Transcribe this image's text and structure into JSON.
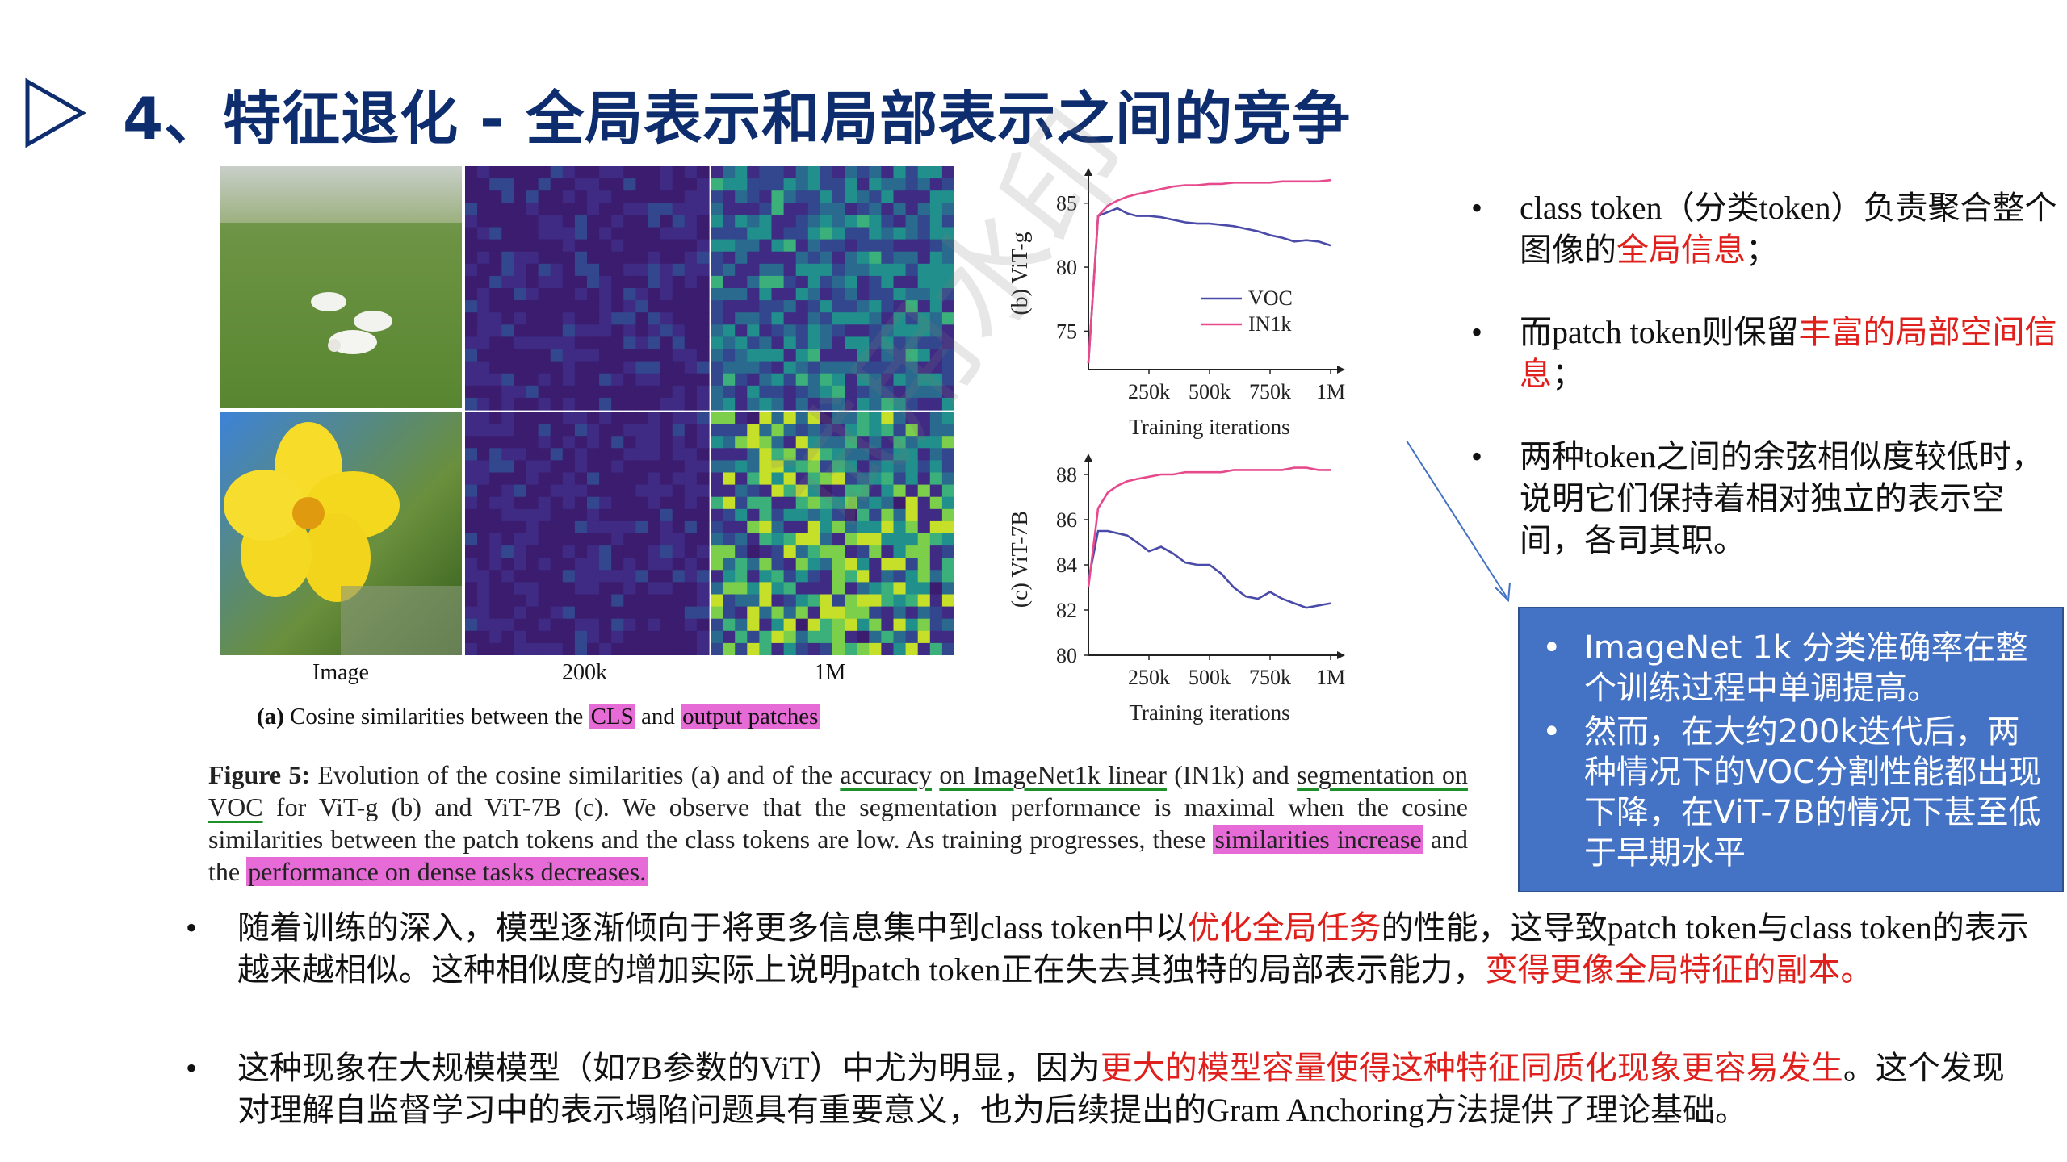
{
  "title": "4、特征退化 - 全局表示和局部表示之间的竞争",
  "figure_a": {
    "column_labels": [
      "Image",
      "200k",
      "1M"
    ],
    "caption_prefix": "(a)",
    "caption_text": "Cosine similarities between the",
    "caption_cls": "CLS",
    "caption_and": "and",
    "caption_output": "output patches"
  },
  "chart_data": [
    {
      "type": "line",
      "ylabel": "(b) ViT-g",
      "xlabel": "Training iterations",
      "x_ticks": [
        "250k",
        "500k",
        "750k",
        "1M"
      ],
      "y_ticks": [
        75,
        80,
        85
      ],
      "ylim": [
        72,
        87
      ],
      "xlim": [
        0,
        1000
      ],
      "legend": "inside-right",
      "x": [
        0,
        40,
        80,
        120,
        160,
        200,
        250,
        300,
        350,
        400,
        450,
        500,
        550,
        600,
        650,
        700,
        750,
        800,
        850,
        900,
        950,
        1000
      ],
      "series": [
        {
          "name": "VOC",
          "color": "#4a4aa8",
          "values": [
            72.5,
            84.0,
            84.3,
            84.6,
            84.2,
            84.0,
            84.0,
            83.9,
            83.7,
            83.5,
            83.4,
            83.4,
            83.3,
            83.2,
            83.0,
            82.8,
            82.5,
            82.3,
            82.0,
            82.1,
            82.0,
            81.7
          ]
        },
        {
          "name": "IN1k",
          "color": "#e64a8c",
          "values": [
            72.5,
            84.0,
            84.8,
            85.2,
            85.5,
            85.7,
            85.9,
            86.1,
            86.3,
            86.4,
            86.4,
            86.5,
            86.5,
            86.6,
            86.6,
            86.6,
            86.6,
            86.7,
            86.7,
            86.7,
            86.7,
            86.8
          ]
        }
      ]
    },
    {
      "type": "line",
      "ylabel": "(c) ViT-7B",
      "xlabel": "Training iterations",
      "x_ticks": [
        "250k",
        "500k",
        "750k",
        "1M"
      ],
      "y_ticks": [
        80,
        82,
        84,
        86,
        88
      ],
      "y_tick_labels": [
        "80",
        "82",
        "84",
        "86",
        "88"
      ],
      "ylim": [
        80,
        88.5
      ],
      "xlim": [
        0,
        1000
      ],
      "x": [
        0,
        40,
        80,
        120,
        160,
        200,
        250,
        300,
        350,
        400,
        450,
        500,
        550,
        600,
        650,
        700,
        750,
        800,
        850,
        900,
        950,
        1000
      ],
      "series": [
        {
          "name": "VOC",
          "color": "#4a4aa8",
          "values": [
            83.3,
            85.5,
            85.5,
            85.4,
            85.3,
            85.0,
            84.6,
            84.8,
            84.5,
            84.1,
            84.0,
            84.0,
            83.6,
            83.0,
            82.6,
            82.5,
            82.8,
            82.5,
            82.3,
            82.1,
            82.2,
            82.3
          ]
        },
        {
          "name": "IN1k",
          "color": "#e64a8c",
          "values": [
            83.0,
            86.5,
            87.2,
            87.5,
            87.7,
            87.8,
            87.9,
            88.0,
            88.0,
            88.1,
            88.1,
            88.1,
            88.1,
            88.2,
            88.2,
            88.2,
            88.2,
            88.2,
            88.3,
            88.3,
            88.2,
            88.2
          ]
        }
      ]
    }
  ],
  "figure5": {
    "label": "Figure 5:",
    "t1": "Evolution of the cosine similarities (a) and of the",
    "t_accuracy": "accuracy",
    "t_in1k": "on ImageNet1k linear",
    "t2": "(IN1k) and",
    "t_seg": "segmentation on VOC",
    "t3": "for ViT-g (b) and ViT-7B (c).  We observe that the segmentation performance is maximal when the cosine similarities between the patch tokens and the class tokens are low.  As training progresses, these",
    "t_sim": "similarities increase",
    "t4": "and the",
    "t_perf": "performance on dense tasks decreases."
  },
  "right_bullets": [
    {
      "dot": "•",
      "pre": "class token（分类token）负责聚合整个图像的",
      "red": "全局信息",
      "post": "；"
    },
    {
      "dot": "•",
      "pre": "而patch token则保留",
      "red": "丰富的局部空间信息",
      "post": "；"
    },
    {
      "dot": "•",
      "pre": "两种token之间的余弦相似度较低时，说明它们保持着相对独立的表示空间，各司其职。",
      "red": "",
      "post": ""
    }
  ],
  "blue_box": [
    {
      "dot": "•",
      "text": "ImageNet 1k 分类准确率在整个训练过程中单调提高。"
    },
    {
      "dot": "•",
      "text": "然而，在大约200k迭代后，两种情况下的VOC分割性能都出现下降，在ViT-7B的情况下甚至低于早期水平"
    }
  ],
  "bottom_bullets": [
    {
      "dot": "•",
      "pre": "随着训练的深入，模型逐渐倾向于将更多信息集中到class token中以",
      "red": "优化全局任务",
      "mid": "的性能，这导致patch token与class token的表示越来越相似。这种相似度的增加实际上说明patch token正在失去其独特的局部表示能力，",
      "red2": "变得更像全局特征的副本。",
      "post": ""
    },
    {
      "dot": "•",
      "pre": "这种现象在大规模模型（如7B参数的ViT）中尤为明显，因为",
      "red": "更大的模型容量使得这种特征同质化现象更容易发生",
      "mid": "。这个发现对理解自监督学习中的表示塌陷问题具有重要意义，也为后续提出的Gram Anchoring方法提供了理论基础。",
      "red2": "",
      "post": ""
    }
  ],
  "watermark": "试用水印",
  "colors": {
    "title": "#0d2d6e",
    "red": "#e0201c",
    "box": "#4472c4",
    "pink_highlight": "#e76bd6",
    "underline": "#1f8f2a"
  }
}
